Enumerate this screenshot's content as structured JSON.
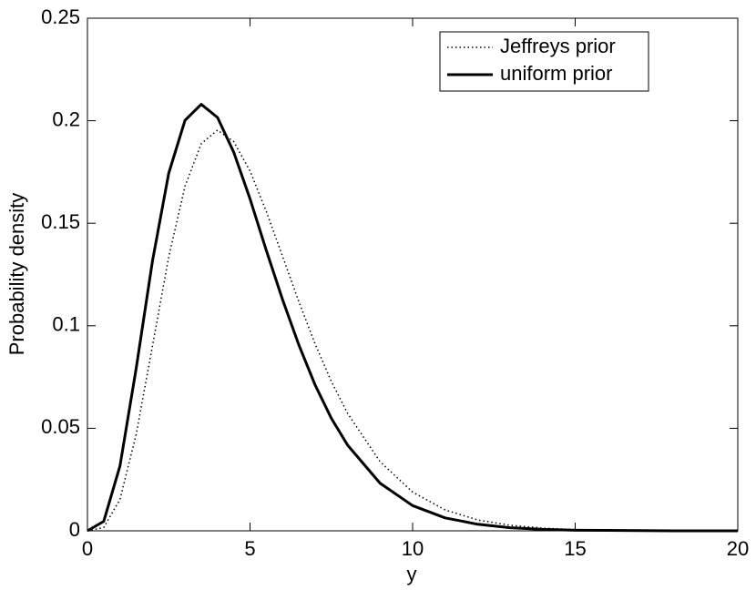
{
  "chart_data": {
    "type": "line",
    "xlabel": "y",
    "ylabel": "Probability density",
    "x": [
      0,
      0.5,
      1,
      1.5,
      2,
      2.5,
      3,
      3.5,
      4,
      4.5,
      5,
      5.5,
      6,
      6.5,
      7,
      7.5,
      8,
      9,
      10,
      11,
      12,
      13,
      14,
      15,
      16,
      17,
      18,
      19,
      20
    ],
    "series": [
      {
        "name": "Jeffreys prior",
        "color": "#000000",
        "style": "dotted",
        "width": 1.5,
        "values": [
          0,
          0.0016,
          0.0153,
          0.0471,
          0.0902,
          0.1336,
          0.168,
          0.1888,
          0.1954,
          0.1898,
          0.1755,
          0.1558,
          0.1339,
          0.1118,
          0.0912,
          0.0729,
          0.0573,
          0.0337,
          0.0189,
          0.0102,
          0.0053,
          0.0027,
          0.0013,
          0.0006,
          0.0003,
          0.0001,
          0,
          0,
          0
        ]
      },
      {
        "name": "uniform prior",
        "color": "#000000",
        "style": "solid",
        "width": 3,
        "values": [
          0,
          0.0046,
          0.0316,
          0.0793,
          0.1316,
          0.1744,
          0.2002,
          0.208,
          0.2016,
          0.1846,
          0.1619,
          0.1368,
          0.1128,
          0.0907,
          0.0712,
          0.0549,
          0.0418,
          0.0232,
          0.0123,
          0.0063,
          0.0032,
          0.0015,
          0.0007,
          0.0003,
          0.0002,
          0.0001,
          0,
          0,
          0
        ]
      }
    ],
    "xlim": [
      0,
      20
    ],
    "xticks": [
      0,
      5,
      10,
      15,
      20
    ],
    "ylim": [
      0,
      0.25
    ],
    "yticks": [
      0,
      0.05,
      0.1,
      0.15,
      0.2,
      0.25
    ],
    "grid": false,
    "legend": "upper right"
  }
}
